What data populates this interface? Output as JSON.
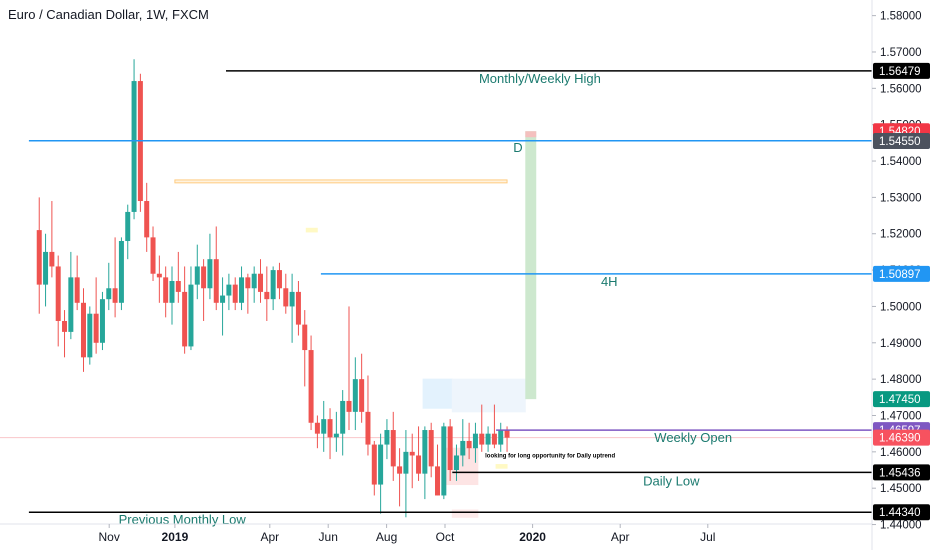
{
  "header": {
    "title": "Euro / Canadian Dollar, 1W, FXCM"
  },
  "chart_data": {
    "type": "candlestick",
    "symbol": "EURCAD",
    "timeframe": "1W",
    "source": "FXCM",
    "ylim": [
      1.4385,
      1.5843
    ],
    "y_ticks": [
      "1.44000",
      "1.45000",
      "1.46000",
      "1.47000",
      "1.48000",
      "1.49000",
      "1.50000",
      "1.51000",
      "1.52000",
      "1.53000",
      "1.54000",
      "1.55000",
      "1.56000",
      "1.57000",
      "1.58000"
    ],
    "x_ticks": [
      {
        "label": "Nov",
        "week": -6
      },
      {
        "label": "2019",
        "week": 3
      },
      {
        "label": "Apr",
        "week": 16
      },
      {
        "label": "Jun",
        "week": 24
      },
      {
        "label": "Aug",
        "week": 32
      },
      {
        "label": "Oct",
        "week": 40
      },
      {
        "label": "2020",
        "week": 52
      },
      {
        "label": "Apr",
        "week": 64
      },
      {
        "label": "Jul",
        "week": 76
      }
    ],
    "candles": [
      [
        1.521,
        1.53,
        1.498,
        1.506
      ],
      [
        1.506,
        1.52,
        1.5,
        1.515
      ],
      [
        1.515,
        1.529,
        1.508,
        1.511
      ],
      [
        1.511,
        1.514,
        1.489,
        1.496
      ],
      [
        1.496,
        1.499,
        1.486,
        1.493
      ],
      [
        1.493,
        1.515,
        1.491,
        1.508
      ],
      [
        1.508,
        1.514,
        1.499,
        1.501
      ],
      [
        1.501,
        1.505,
        1.482,
        1.486
      ],
      [
        1.486,
        1.5,
        1.484,
        1.498
      ],
      [
        1.498,
        1.508,
        1.487,
        1.49
      ],
      [
        1.49,
        1.504,
        1.488,
        1.502
      ],
      [
        1.502,
        1.512,
        1.499,
        1.505
      ],
      [
        1.505,
        1.519,
        1.497,
        1.501
      ],
      [
        1.501,
        1.519,
        1.499,
        1.518
      ],
      [
        1.518,
        1.528,
        1.513,
        1.526
      ],
      [
        1.526,
        1.568,
        1.524,
        1.562
      ],
      [
        1.562,
        1.564,
        1.526,
        1.529
      ],
      [
        1.529,
        1.534,
        1.515,
        1.519
      ],
      [
        1.519,
        1.522,
        1.507,
        1.509
      ],
      [
        1.509,
        1.514,
        1.501,
        1.508
      ],
      [
        1.508,
        1.511,
        1.497,
        1.501
      ],
      [
        1.501,
        1.511,
        1.495,
        1.507
      ],
      [
        1.507,
        1.515,
        1.501,
        1.504
      ],
      [
        1.504,
        1.511,
        1.487,
        1.489
      ],
      [
        1.489,
        1.511,
        1.488,
        1.506
      ],
      [
        1.506,
        1.517,
        1.502,
        1.511
      ],
      [
        1.511,
        1.513,
        1.496,
        1.505
      ],
      [
        1.505,
        1.52,
        1.502,
        1.513
      ],
      [
        1.513,
        1.522,
        1.499,
        1.501
      ],
      [
        1.501,
        1.508,
        1.492,
        1.503
      ],
      [
        1.503,
        1.509,
        1.499,
        1.506
      ],
      [
        1.506,
        1.508,
        1.499,
        1.501
      ],
      [
        1.501,
        1.511,
        1.499,
        1.508
      ],
      [
        1.508,
        1.509,
        1.498,
        1.505
      ],
      [
        1.505,
        1.511,
        1.501,
        1.509
      ],
      [
        1.509,
        1.513,
        1.501,
        1.504
      ],
      [
        1.504,
        1.511,
        1.496,
        1.502
      ],
      [
        1.502,
        1.511,
        1.499,
        1.51
      ],
      [
        1.51,
        1.512,
        1.502,
        1.505
      ],
      [
        1.505,
        1.509,
        1.498,
        1.5
      ],
      [
        1.5,
        1.509,
        1.49,
        1.504
      ],
      [
        1.504,
        1.507,
        1.492,
        1.495
      ],
      [
        1.495,
        1.499,
        1.478,
        1.488
      ],
      [
        1.488,
        1.492,
        1.466,
        1.468
      ],
      [
        1.468,
        1.47,
        1.461,
        1.465
      ],
      [
        1.465,
        1.474,
        1.46,
        1.469
      ],
      [
        1.469,
        1.472,
        1.458,
        1.464
      ],
      [
        1.464,
        1.471,
        1.46,
        1.465
      ],
      [
        1.465,
        1.477,
        1.459,
        1.474
      ],
      [
        1.474,
        1.5,
        1.466,
        1.471
      ],
      [
        1.471,
        1.486,
        1.466,
        1.48
      ],
      [
        1.48,
        1.487,
        1.468,
        1.471
      ],
      [
        1.471,
        1.481,
        1.459,
        1.462
      ],
      [
        1.462,
        1.463,
        1.448,
        1.451
      ],
      [
        1.451,
        1.465,
        1.443,
        1.462
      ],
      [
        1.462,
        1.469,
        1.458,
        1.466
      ],
      [
        1.466,
        1.471,
        1.452,
        1.456
      ],
      [
        1.456,
        1.461,
        1.445,
        1.454
      ],
      [
        1.454,
        1.466,
        1.442,
        1.46
      ],
      [
        1.46,
        1.465,
        1.45,
        1.459
      ],
      [
        1.459,
        1.467,
        1.452,
        1.454
      ],
      [
        1.454,
        1.467,
        1.447,
        1.466
      ],
      [
        1.466,
        1.468,
        1.453,
        1.456
      ],
      [
        1.456,
        1.462,
        1.448,
        1.448
      ],
      [
        1.448,
        1.468,
        1.447,
        1.467
      ],
      [
        1.467,
        1.469,
        1.452,
        1.455
      ],
      [
        1.455,
        1.462,
        1.452,
        1.459
      ],
      [
        1.459,
        1.469,
        1.456,
        1.463
      ],
      [
        1.463,
        1.468,
        1.458,
        1.461
      ],
      [
        1.461,
        1.468,
        1.457,
        1.465
      ],
      [
        1.465,
        1.473,
        1.46,
        1.462
      ],
      [
        1.462,
        1.467,
        1.46,
        1.465
      ],
      [
        1.465,
        1.473,
        1.461,
        1.462
      ],
      [
        1.462,
        1.468,
        1.46,
        1.466
      ],
      [
        1.466,
        1.467,
        1.46,
        1.4639
      ]
    ],
    "horizontal_levels": [
      {
        "label": "Monthly/Weekly High",
        "price": 1.56479,
        "price_label": "1.56479",
        "color": "#000000",
        "badge_bg": "#000000",
        "from_week": 10
      },
      {
        "label": "D",
        "price": 1.54557,
        "price_label": "1.54557",
        "color": "#2196f3",
        "badge_bg": "#2196f3",
        "from_week": -17
      },
      {
        "label": "4H",
        "price": 1.50897,
        "price_label": "1.50897",
        "color": "#2196f3",
        "badge_bg": "#2196f3",
        "from_week": 23
      },
      {
        "label": "Weekly Open",
        "price": 1.46597,
        "price_label": "1.46597",
        "color": "#7e57c2",
        "badge_bg": "#7e57c2",
        "from_week": 47
      },
      {
        "label": "Daily Low",
        "price": 1.45436,
        "price_label": "1.45436",
        "color": "#000000",
        "badge_bg": "#000000",
        "from_week": 41
      },
      {
        "label": "Previous Monthly Low",
        "price": 1.4434,
        "price_label": "1.44340",
        "color": "#000000",
        "badge_bg": "#000000",
        "from_week": -17
      }
    ],
    "price_badges": [
      {
        "price": 1.5482,
        "label": "1.54820",
        "bg": "#f23645"
      },
      {
        "price": 1.5455,
        "label": "1.54550",
        "bg": "#4c525e"
      },
      {
        "price": 1.4745,
        "label": "1.47450",
        "bg": "#089981"
      },
      {
        "price": 1.4639,
        "label": "1.46390",
        "bg": "#f7525f"
      }
    ],
    "current_price": 1.4639,
    "position": {
      "from_week": 51,
      "to_week": 52.5,
      "entry": 1.4745,
      "target": 1.5482
    },
    "annotation": "looking for long opportunity for Daily uptrend",
    "zones": [
      {
        "from_week": 3,
        "to_week": 48.5,
        "top": 1.5348,
        "bottom": 1.534,
        "fill": "#fff3e0",
        "stroke": "#ffcc80"
      },
      {
        "from_week": 37,
        "to_week": 41,
        "top": 1.48,
        "bottom": 1.472,
        "fill": "#e3f2fd",
        "stroke": "#e3f2fd"
      },
      {
        "from_week": 41,
        "to_week": 51,
        "top": 1.48,
        "bottom": 1.471,
        "fill": "#eef5fc",
        "stroke": "#eef5fc"
      },
      {
        "from_week": 40,
        "to_week": 44.5,
        "top": 1.461,
        "bottom": 1.451,
        "fill": "#fde4e4",
        "stroke": "#fde4e4"
      },
      {
        "from_week": 41,
        "to_week": 44.5,
        "top": 1.444,
        "bottom": 1.442,
        "fill": "#fdeaea",
        "stroke": "#fdeaea"
      },
      {
        "from_week": 21,
        "to_week": 22.5,
        "top": 1.5215,
        "bottom": 1.5205,
        "fill": "#fff9c4",
        "stroke": "#fff9c4"
      },
      {
        "from_week": 47,
        "to_week": 48.5,
        "top": 1.4565,
        "bottom": 1.4555,
        "fill": "#fff9c4",
        "stroke": "#fff9c4"
      }
    ],
    "colors": {
      "up": "#26a69a",
      "down": "#ef5350",
      "text_teal": "#1b7a6f"
    }
  }
}
